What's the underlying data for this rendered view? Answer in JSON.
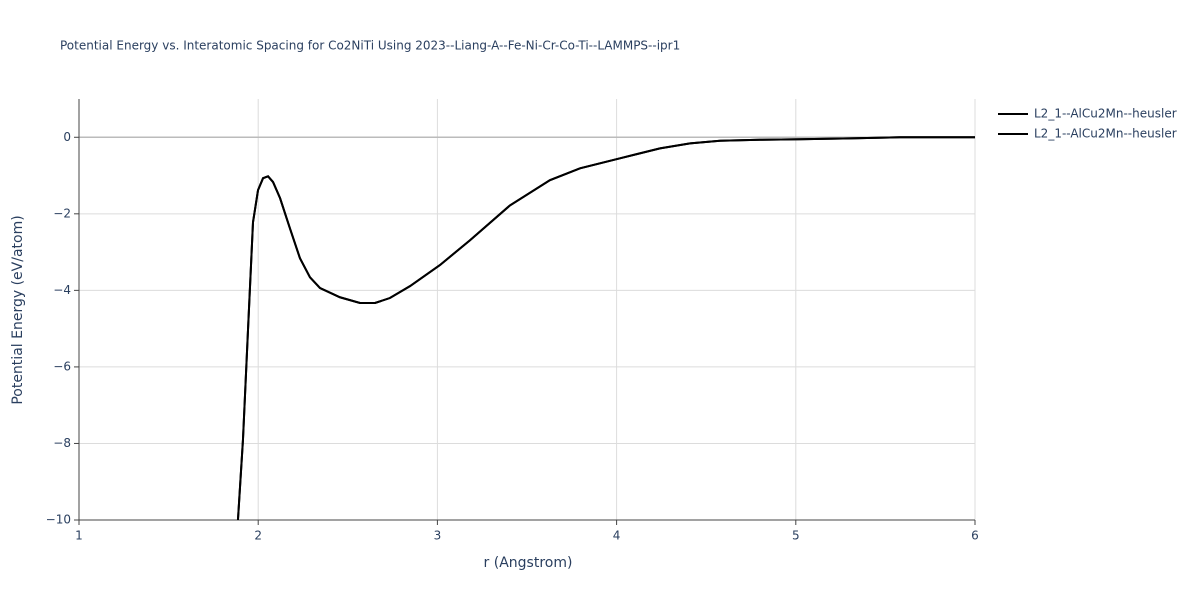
{
  "chart_data": {
    "type": "line",
    "title": "Potential Energy vs. Interatomic Spacing for Co2NiTi Using 2023--Liang-A--Fe-Ni-Cr-Co-Ti--LAMMPS--ipr1",
    "x_label": "r (Angstrom)",
    "y_label": "Potential Energy (eV/atom)",
    "x": [
      1.887,
      1.915,
      1.943,
      1.971,
      1.999,
      2.027,
      2.055,
      2.083,
      2.122,
      2.177,
      2.233,
      2.289,
      2.345,
      2.456,
      2.568,
      2.652,
      2.735,
      2.847,
      3.014,
      3.182,
      3.405,
      3.628,
      3.796,
      4.019,
      4.242,
      4.41,
      4.577,
      4.8,
      5.023,
      5.302,
      5.581,
      6
    ],
    "series": [
      {
        "name": "L2_1--AlCu2Mn--heusler",
        "color": "#000000",
        "values": [
          -10,
          -7.9,
          -5.04,
          -2.22,
          -1.38,
          -1.07,
          -1.02,
          -1.17,
          -1.59,
          -2.38,
          -3.16,
          -3.66,
          -3.94,
          -4.18,
          -4.33,
          -4.33,
          -4.2,
          -3.89,
          -3.34,
          -2.69,
          -1.78,
          -1.12,
          -0.81,
          -0.55,
          -0.29,
          -0.16,
          -0.09,
          -0.065,
          -0.05,
          -0.03,
          0,
          0
        ]
      },
      {
        "name": "L2_1--AlCu2Mn--heusler",
        "color": "#000000",
        "values": [
          -10,
          -7.9,
          -5.04,
          -2.22,
          -1.38,
          -1.07,
          -1.02,
          -1.17,
          -1.59,
          -2.38,
          -3.16,
          -3.66,
          -3.94,
          -4.18,
          -4.33,
          -4.33,
          -4.2,
          -3.89,
          -3.34,
          -2.69,
          -1.78,
          -1.12,
          -0.81,
          -0.55,
          -0.29,
          -0.16,
          -0.09,
          -0.065,
          -0.05,
          -0.03,
          0,
          0
        ]
      }
    ],
    "xlim": [
      1,
      6
    ],
    "xticks": [
      1,
      2,
      3,
      4,
      5,
      6
    ],
    "ylim": [
      -10,
      1
    ],
    "yticks": [
      {
        "value": -10,
        "label": "−10"
      },
      {
        "value": -8,
        "label": "−8"
      },
      {
        "value": -6,
        "label": "−6"
      },
      {
        "value": -4,
        "label": "−4"
      },
      {
        "value": -2,
        "label": "−2"
      },
      0
    ],
    "grid": true,
    "legend": "right"
  }
}
